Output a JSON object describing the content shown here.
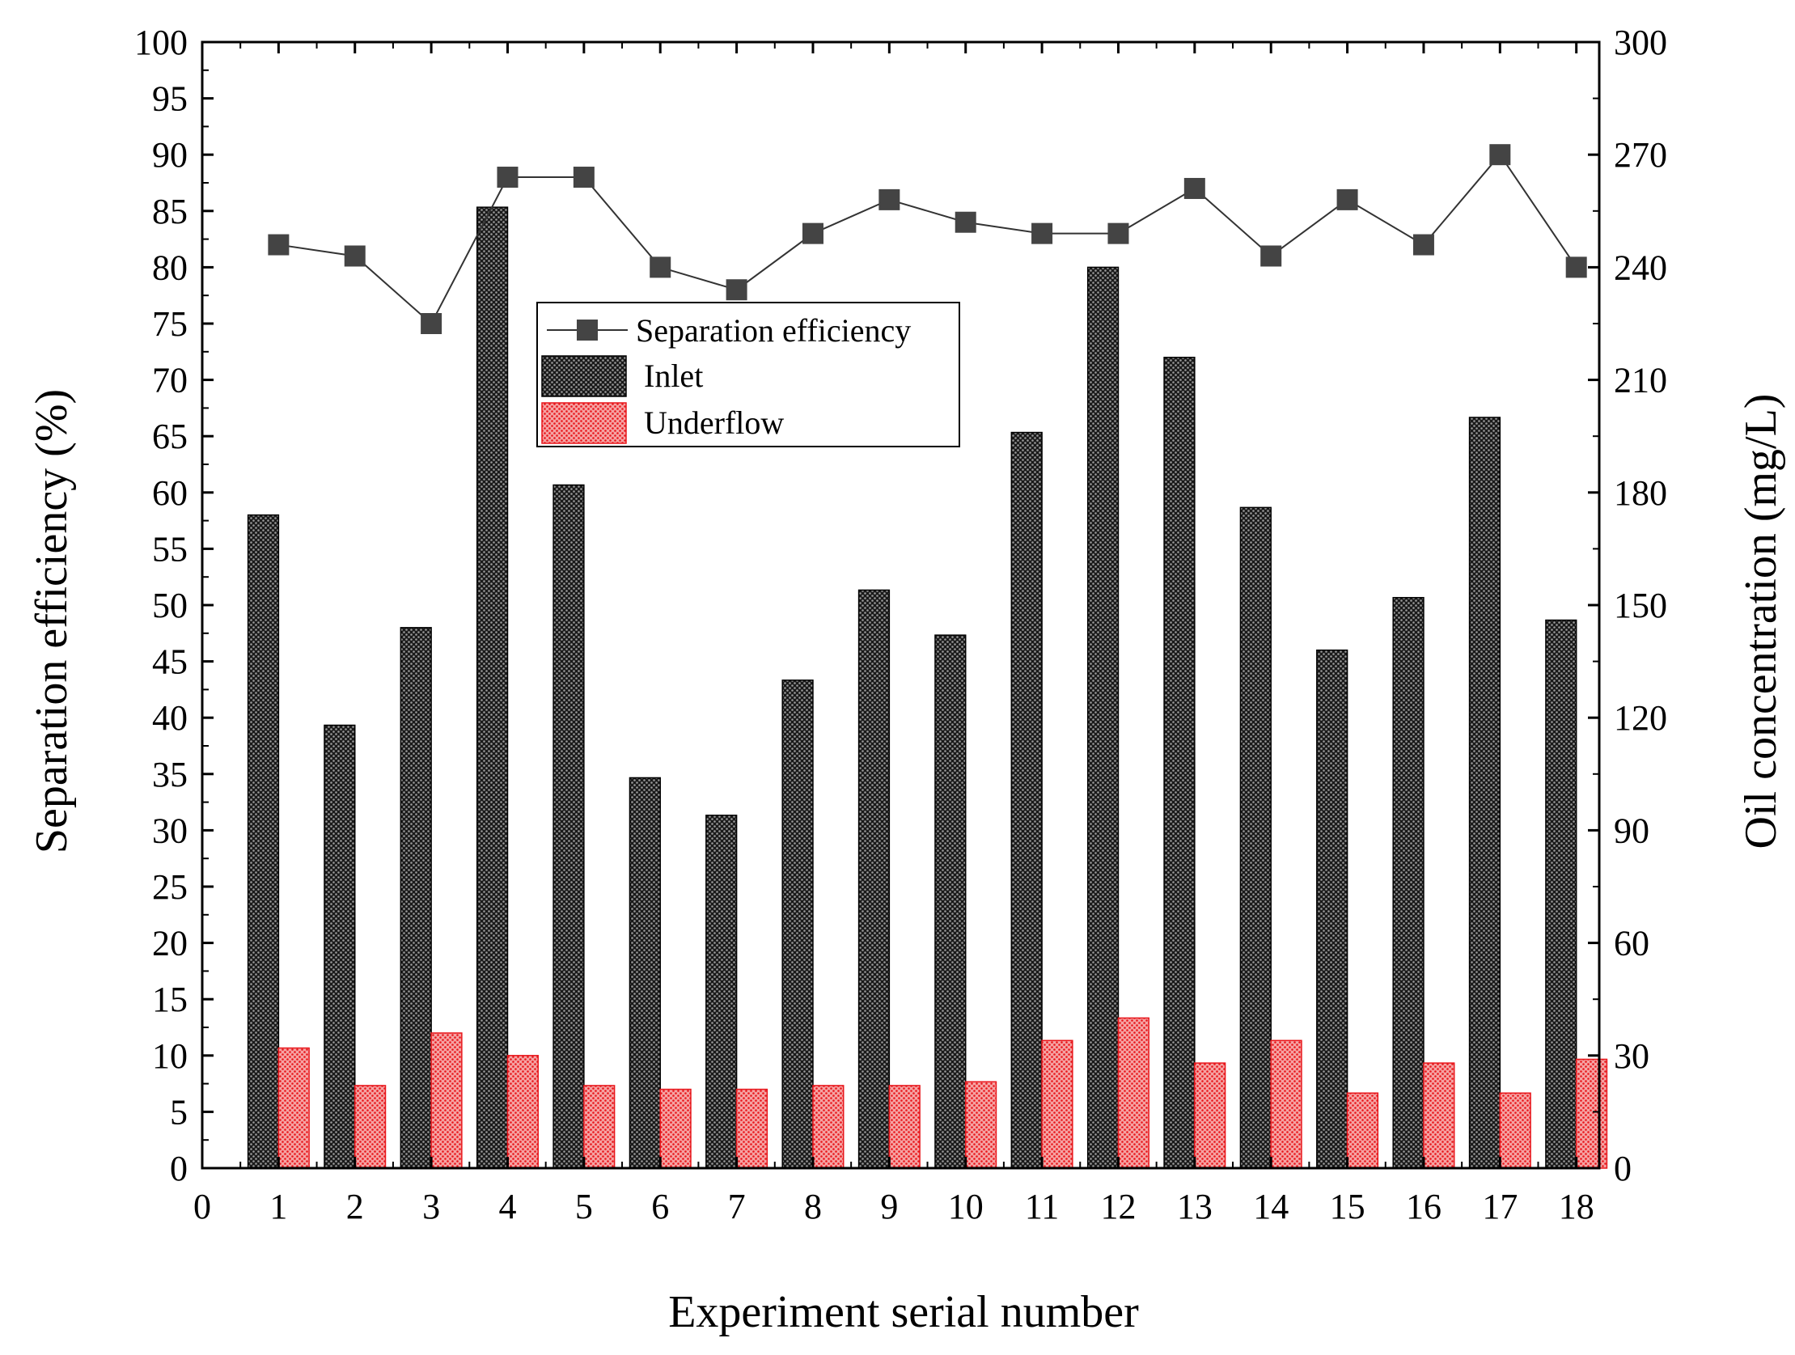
{
  "chart_data": {
    "type": "bar",
    "title": "",
    "xlabel": "Experiment serial number",
    "ylabel": "Separation efficiency (%)",
    "y2label": "Oil concentration (mg/L)",
    "xlim": [
      0,
      18.3
    ],
    "ylim": [
      0,
      100
    ],
    "y2lim": [
      0,
      300
    ],
    "x_ticks": [
      "0",
      "1",
      "2",
      "3",
      "4",
      "5",
      "6",
      "7",
      "8",
      "9",
      "10",
      "11",
      "12",
      "13",
      "14",
      "15",
      "16",
      "17",
      "18"
    ],
    "y_ticks": [
      "0",
      "5",
      "10",
      "15",
      "20",
      "25",
      "30",
      "35",
      "40",
      "45",
      "50",
      "55",
      "60",
      "65",
      "70",
      "75",
      "80",
      "85",
      "90",
      "95",
      "100"
    ],
    "y2_ticks": [
      "0",
      "30",
      "60",
      "90",
      "120",
      "150",
      "180",
      "210",
      "240",
      "270",
      "300"
    ],
    "grid": false,
    "legend_position": "upper-center",
    "x": [
      1,
      2,
      3,
      4,
      5,
      6,
      7,
      8,
      9,
      10,
      11,
      12,
      13,
      14,
      15,
      16,
      17,
      18
    ],
    "series": [
      {
        "name": "Separation efficiency",
        "kind": "line",
        "axis": "left",
        "values": [
          82,
          81,
          75,
          88,
          88,
          80,
          78,
          83,
          86,
          84,
          83,
          83,
          87,
          81,
          86,
          82,
          90,
          80
        ]
      },
      {
        "name": "Inlet",
        "kind": "bar",
        "axis": "right",
        "values": [
          174,
          118,
          144,
          256,
          182,
          104,
          94,
          130,
          154,
          142,
          196,
          240,
          216,
          176,
          138,
          152,
          200,
          146
        ]
      },
      {
        "name": "Underflow",
        "kind": "bar",
        "axis": "right",
        "values": [
          32,
          22,
          36,
          30,
          22,
          21,
          21,
          22,
          22,
          23,
          34,
          40,
          28,
          34,
          20,
          28,
          20,
          29
        ]
      }
    ],
    "colors": {
      "line": "#333333",
      "marker": "#444444",
      "inlet_fill": "#1a1a1a",
      "inlet_dot": "#9a9a9a",
      "underflow_fill": "#f5a3a3",
      "underflow_dot": "#e8161b",
      "axis": "#000000",
      "background": "#ffffff"
    }
  }
}
